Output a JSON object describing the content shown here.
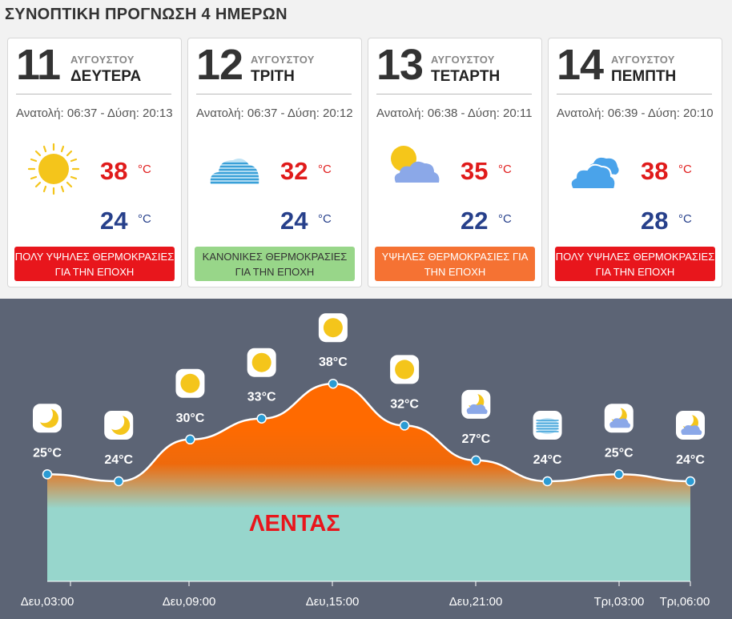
{
  "title": "ΣΥΝΟΠΤΙΚΗ ΠΡΟΓΝΩΣΗ 4 ΗΜΕΡΩΝ",
  "days": [
    {
      "num": "11",
      "month": "ΑΥΓΟΥΣΤΟΥ",
      "name": "ΔΕΥΤΕΡΑ",
      "sun": "Ανατολή: 06:37 - Δύση: 20:13",
      "icon": "sun-icon",
      "max": "38",
      "min": "24",
      "unit": "°C",
      "badge": "ΠΟΛΥ ΥΨΗΛΕΣ ΘΕΡΜΟΚΡΑΣΙΕΣ ΓΙΑ ΤΗΝ ΕΠΟΧΗ",
      "badge_color": "#e8161c"
    },
    {
      "num": "12",
      "month": "ΑΥΓΟΥΣΤΟΥ",
      "name": "ΤΡΙΤΗ",
      "sun": "Ανατολή: 06:37 - Δύση: 20:12",
      "icon": "haze-icon",
      "max": "32",
      "min": "24",
      "unit": "°C",
      "badge": "ΚΑΝΟΝΙΚΕΣ ΘΕΡΜΟΚΡΑΣΙΕΣ ΓΙΑ ΤΗΝ ΕΠΟΧΗ",
      "badge_color": "#98d689"
    },
    {
      "num": "13",
      "month": "ΑΥΓΟΥΣΤΟΥ",
      "name": "ΤΕΤΑΡΤΗ",
      "sun": "Ανατολή: 06:38 - Δύση: 20:11",
      "icon": "partly-cloudy-icon",
      "max": "35",
      "min": "22",
      "unit": "°C",
      "badge": "ΥΨΗΛΕΣ ΘΕΡΜΟΚΡΑΣΙΕΣ ΓΙΑ ΤΗΝ ΕΠΟΧΗ",
      "badge_color": "#f57233"
    },
    {
      "num": "14",
      "month": "ΑΥΓΟΥΣΤΟΥ",
      "name": "ΠΕΜΠΤΗ",
      "sun": "Ανατολή: 06:39 - Δύση: 20:10",
      "icon": "clouds-icon",
      "max": "38",
      "min": "28",
      "unit": "°C",
      "badge": "ΠΟΛΥ ΥΨΗΛΕΣ ΘΕΡΜΟΚΡΑΣΙΕΣ ΓΙΑ ΤΗΝ ΕΠΟΧΗ",
      "badge_color": "#e8161c"
    }
  ],
  "graph": {
    "location": "ΛΕΝΤΑΣ",
    "x_ticks": [
      "Δευ,03:00",
      "Δευ,09:00",
      "Δευ,15:00",
      "Δευ,21:00",
      "Τρι,03:00",
      "Τρι,06:00"
    ]
  },
  "chart_data": {
    "type": "area",
    "series": [
      {
        "values": [
          25,
          24,
          30,
          33,
          38,
          32,
          27,
          24,
          25,
          24
        ],
        "labels": [
          "25°C",
          "24°C",
          "30°C",
          "33°C",
          "38°C",
          "32°C",
          "27°C",
          "24°C",
          "25°C",
          "24°C"
        ],
        "icons": [
          "moon-icon",
          "moon-icon",
          "sun-icon",
          "sun-icon",
          "sun-icon",
          "sun-icon",
          "moon-cloud-icon",
          "haze-icon",
          "moon-cloud-icon",
          "moon-cloud-icon"
        ]
      }
    ],
    "colors": {
      "fill_top": "#ff6a00",
      "fill_bottom": "#97d6cc",
      "line": "#ffffff",
      "point": "#2b9bd3",
      "background": "#5c6475"
    }
  }
}
